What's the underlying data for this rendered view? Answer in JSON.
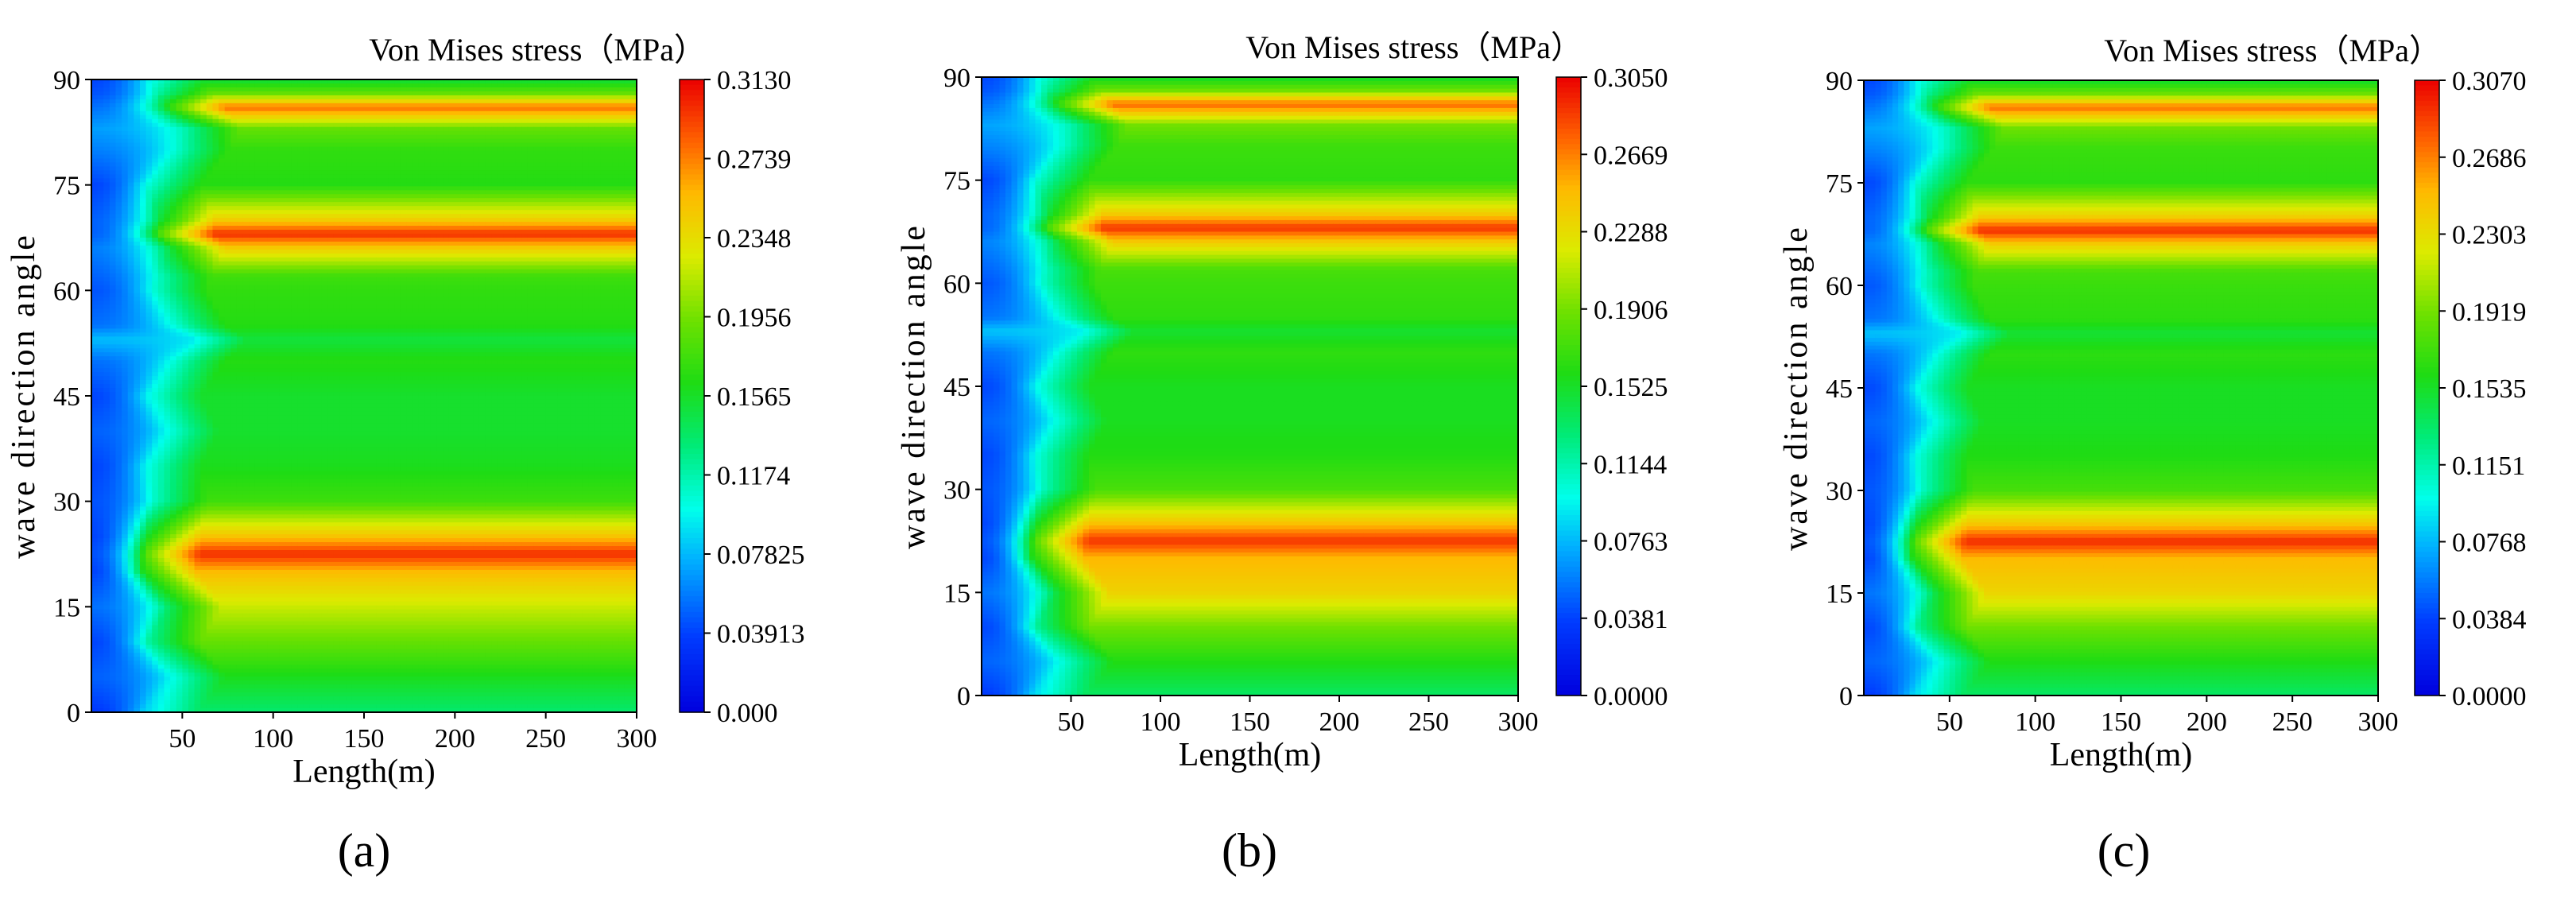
{
  "chart_data": [
    {
      "type": "heatmap",
      "panel_label": "(a)",
      "title": "Von Mises stress（MPa）",
      "xlabel": "Length(m)",
      "ylabel": "wave direction angle",
      "xlim": [
        0,
        300
      ],
      "ylim": [
        0,
        90
      ],
      "xticks": [
        "50",
        "100",
        "150",
        "200",
        "250",
        "300"
      ],
      "yticks": [
        "0",
        "15",
        "30",
        "45",
        "60",
        "75",
        "90"
      ],
      "colorbar": {
        "min": 0,
        "max": 0.313,
        "ticks": [
          "0.000",
          "0.03913",
          "0.07825",
          "0.1174",
          "0.1565",
          "0.1956",
          "0.2348",
          "0.2739",
          "0.3130"
        ]
      },
      "field": {
        "angles": [
          0,
          5,
          10,
          15,
          20,
          22.5,
          25,
          30,
          35,
          40,
          45,
          50,
          53,
          55,
          60,
          62,
          66,
          68,
          70,
          75,
          80,
          83,
          86,
          88,
          90
        ],
        "core": [
          0.135,
          0.16,
          0.19,
          0.22,
          0.255,
          0.3,
          0.25,
          0.175,
          0.16,
          0.155,
          0.155,
          0.165,
          0.15,
          0.165,
          0.17,
          0.175,
          0.245,
          0.3,
          0.245,
          0.165,
          0.17,
          0.19,
          0.28,
          0.19,
          0.15
        ],
        "wall": [
          0.035,
          0.05,
          0.04,
          0.055,
          0.04,
          0.045,
          0.04,
          0.045,
          0.04,
          0.05,
          0.04,
          0.055,
          0.08,
          0.055,
          0.045,
          0.05,
          0.06,
          0.05,
          0.05,
          0.04,
          0.06,
          0.07,
          0.055,
          0.045,
          0.04
        ],
        "wall_extent_m": [
          28,
          44,
          30,
          42,
          28,
          30,
          30,
          34,
          30,
          40,
          30,
          44,
          56,
          44,
          34,
          36,
          44,
          38,
          38,
          30,
          46,
          52,
          44,
          36,
          30
        ]
      }
    },
    {
      "type": "heatmap",
      "panel_label": "(b)",
      "title": "Von Mises stress（MPa）",
      "xlabel": "Length(m)",
      "ylabel": "wave direction angle",
      "xlim": [
        0,
        300
      ],
      "ylim": [
        0,
        90
      ],
      "xticks": [
        "50",
        "100",
        "150",
        "200",
        "250",
        "300"
      ],
      "yticks": [
        "0",
        "15",
        "30",
        "45",
        "60",
        "75",
        "90"
      ],
      "colorbar": {
        "min": 0,
        "max": 0.305,
        "ticks": [
          "0.0000",
          "0.0381",
          "0.0763",
          "0.1144",
          "0.1525",
          "0.1906",
          "0.2288",
          "0.2669",
          "0.3050"
        ]
      },
      "field": {
        "angles": [
          0,
          5,
          10,
          15,
          20,
          22.5,
          25,
          30,
          35,
          40,
          45,
          50,
          53,
          55,
          60,
          62,
          66,
          68,
          70,
          75,
          80,
          83,
          86,
          88,
          90
        ],
        "core": [
          0.135,
          0.16,
          0.19,
          0.235,
          0.25,
          0.29,
          0.245,
          0.175,
          0.16,
          0.155,
          0.155,
          0.165,
          0.15,
          0.165,
          0.17,
          0.175,
          0.24,
          0.29,
          0.24,
          0.165,
          0.17,
          0.19,
          0.275,
          0.19,
          0.15
        ],
        "wall": [
          0.035,
          0.05,
          0.04,
          0.055,
          0.04,
          0.045,
          0.04,
          0.045,
          0.04,
          0.05,
          0.04,
          0.055,
          0.08,
          0.055,
          0.045,
          0.05,
          0.06,
          0.05,
          0.05,
          0.04,
          0.06,
          0.07,
          0.055,
          0.045,
          0.04
        ],
        "wall_extent_m": [
          28,
          44,
          30,
          42,
          28,
          30,
          30,
          34,
          30,
          40,
          30,
          44,
          56,
          44,
          34,
          36,
          44,
          38,
          38,
          30,
          46,
          52,
          44,
          36,
          30
        ]
      }
    },
    {
      "type": "heatmap",
      "panel_label": "(c)",
      "title": "Von Mises stress（MPa）",
      "xlabel": "Length(m)",
      "ylabel": "wave direction angle",
      "xlim": [
        0,
        300
      ],
      "ylim": [
        0,
        90
      ],
      "xticks": [
        "50",
        "100",
        "150",
        "200",
        "250",
        "300"
      ],
      "yticks": [
        "0",
        "15",
        "30",
        "45",
        "60",
        "75",
        "90"
      ],
      "colorbar": {
        "min": 0,
        "max": 0.307,
        "ticks": [
          "0.0000",
          "0.0384",
          "0.0768",
          "0.1151",
          "0.1535",
          "0.1919",
          "0.2303",
          "0.2686",
          "0.3070"
        ]
      },
      "field": {
        "angles": [
          0,
          5,
          10,
          15,
          20,
          22.5,
          25,
          30,
          35,
          40,
          45,
          50,
          53,
          55,
          60,
          62,
          66,
          68,
          70,
          75,
          80,
          83,
          86,
          88,
          90
        ],
        "core": [
          0.135,
          0.16,
          0.19,
          0.235,
          0.25,
          0.295,
          0.245,
          0.175,
          0.16,
          0.155,
          0.155,
          0.165,
          0.15,
          0.165,
          0.17,
          0.175,
          0.24,
          0.295,
          0.24,
          0.165,
          0.17,
          0.19,
          0.275,
          0.19,
          0.15
        ],
        "wall": [
          0.035,
          0.05,
          0.04,
          0.055,
          0.04,
          0.045,
          0.04,
          0.045,
          0.04,
          0.05,
          0.04,
          0.055,
          0.08,
          0.055,
          0.045,
          0.05,
          0.06,
          0.05,
          0.05,
          0.04,
          0.06,
          0.07,
          0.055,
          0.045,
          0.04
        ],
        "wall_extent_m": [
          28,
          44,
          30,
          42,
          28,
          30,
          30,
          34,
          30,
          40,
          30,
          44,
          56,
          44,
          34,
          36,
          44,
          38,
          38,
          30,
          46,
          52,
          44,
          36,
          30
        ]
      }
    }
  ]
}
